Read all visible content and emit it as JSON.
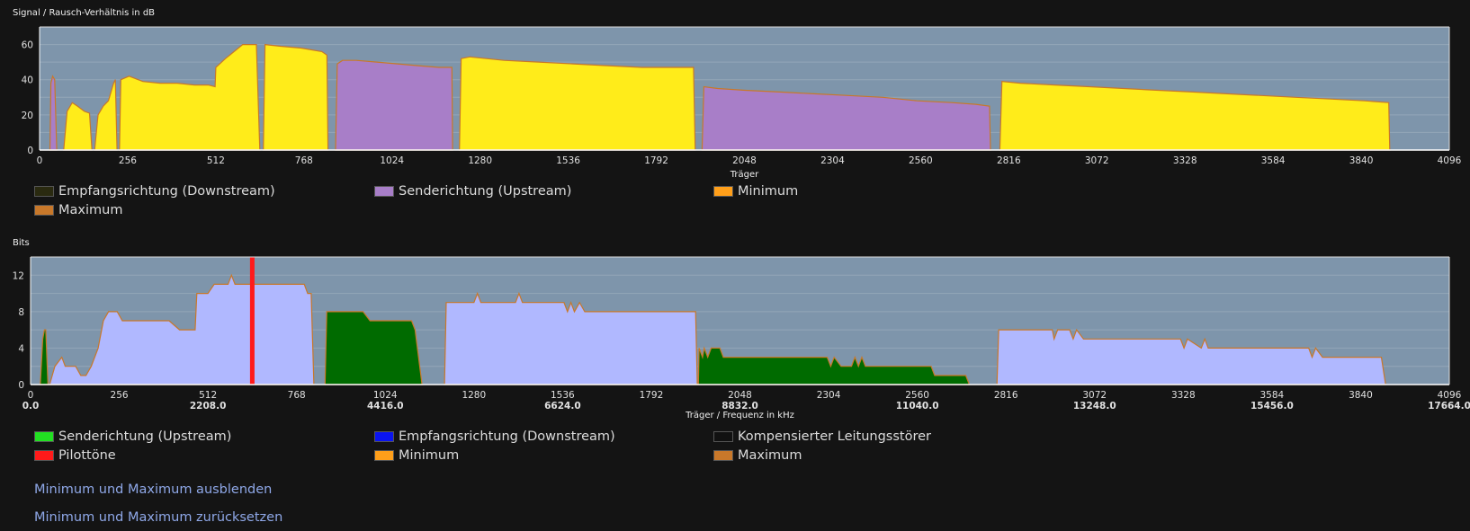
{
  "chart_data": [
    {
      "type": "area",
      "title": "Signal / Rausch-Verhältnis in dB",
      "xlabel": "Träger",
      "ylabel": "",
      "xlim": [
        0,
        4096
      ],
      "ylim": [
        0,
        70
      ],
      "x_ticks": [
        0,
        256,
        512,
        768,
        1024,
        1280,
        1536,
        1792,
        2048,
        2304,
        2560,
        2816,
        3072,
        3328,
        3584,
        3840,
        4096
      ],
      "y_ticks": [
        0,
        20,
        40,
        60
      ],
      "grid": true,
      "legend_position": "bottom",
      "legend": [
        {
          "label": "Empfangsrichtung (Downstream)",
          "color": "#2a2a10"
        },
        {
          "label": "Senderichtung (Upstream)",
          "color": "#a87ec8"
        },
        {
          "label": "Minimum",
          "color": "#ff9f1a"
        },
        {
          "label": "Maximum",
          "color": "#c8782a"
        }
      ],
      "series": [
        {
          "role": "down",
          "color": "#ffec1a",
          "segments": [
            [
              [
                70,
                0
              ],
              [
                80,
                22
              ],
              [
                95,
                27
              ],
              [
                110,
                25
              ],
              [
                130,
                22
              ],
              [
                145,
                21
              ],
              [
                152,
                0
              ]
            ],
            [
              [
                160,
                0
              ],
              [
                170,
                20
              ],
              [
                185,
                25
              ],
              [
                200,
                28
              ],
              [
                215,
                38
              ],
              [
                220,
                40
              ],
              [
                225,
                0
              ]
            ],
            [
              [
                232,
                0
              ],
              [
                236,
                40
              ],
              [
                260,
                42
              ],
              [
                300,
                39
              ],
              [
                350,
                38
              ],
              [
                400,
                38
              ],
              [
                450,
                37
              ],
              [
                490,
                37
              ],
              [
                510,
                36
              ],
              [
                512,
                47
              ],
              [
                540,
                52
              ],
              [
                565,
                56
              ],
              [
                590,
                60
              ],
              [
                630,
                60
              ],
              [
                640,
                0
              ]
            ],
            [
              [
                650,
                0
              ],
              [
                655,
                60
              ],
              [
                700,
                59
              ],
              [
                760,
                58
              ],
              [
                820,
                56
              ],
              [
                835,
                54
              ],
              [
                838,
                0
              ]
            ],
            [
              [
                1220,
                0
              ],
              [
                1225,
                52
              ],
              [
                1250,
                53
              ],
              [
                1350,
                51
              ],
              [
                1450,
                50
              ],
              [
                1550,
                49
              ],
              [
                1650,
                48
              ],
              [
                1750,
                47
              ],
              [
                1900,
                47
              ],
              [
                1905,
                0
              ]
            ],
            [
              [
                2790,
                0
              ],
              [
                2796,
                39
              ],
              [
                2850,
                38
              ],
              [
                2950,
                37
              ],
              [
                3050,
                36
              ],
              [
                3150,
                35
              ],
              [
                3250,
                34
              ],
              [
                3350,
                33
              ],
              [
                3450,
                32
              ],
              [
                3550,
                31
              ],
              [
                3650,
                30
              ],
              [
                3750,
                29
              ],
              [
                3850,
                28
              ],
              [
                3920,
                27
              ],
              [
                3923,
                0
              ]
            ]
          ]
        },
        {
          "role": "up",
          "color": "#a87ec8",
          "segments": [
            [
              [
                30,
                0
              ],
              [
                33,
                38
              ],
              [
                38,
                42
              ],
              [
                44,
                40
              ],
              [
                50,
                0
              ]
            ],
            [
              [
                860,
                0
              ],
              [
                865,
                49
              ],
              [
                880,
                51
              ],
              [
                920,
                51
              ],
              [
                980,
                50
              ],
              [
                1040,
                49
              ],
              [
                1100,
                48
              ],
              [
                1160,
                47
              ],
              [
                1198,
                47
              ],
              [
                1200,
                0
              ]
            ],
            [
              [
                1925,
                0
              ],
              [
                1930,
                36
              ],
              [
                1970,
                35
              ],
              [
                2050,
                34
              ],
              [
                2150,
                33
              ],
              [
                2250,
                32
              ],
              [
                2350,
                31
              ],
              [
                2450,
                30
              ],
              [
                2550,
                28
              ],
              [
                2650,
                27
              ],
              [
                2720,
                26
              ],
              [
                2760,
                25
              ],
              [
                2763,
                0
              ]
            ]
          ]
        }
      ]
    },
    {
      "type": "area",
      "title": "Bits",
      "xlabel": "Träger / Frequenz in kHz",
      "ylabel": "",
      "xlim": [
        0,
        4096
      ],
      "ylim": [
        0,
        14
      ],
      "x_ticks": [
        0,
        256,
        512,
        768,
        1024,
        1280,
        1536,
        1792,
        2048,
        2304,
        2560,
        2816,
        3072,
        3328,
        3584,
        3840,
        4096
      ],
      "x_ticks_secondary": [
        "0.0",
        "2208.0",
        "4416.0",
        "6624.0",
        "8832.0",
        "11040.0",
        "13248.0",
        "15456.0",
        "17664.0"
      ],
      "y_ticks": [
        0,
        4,
        8,
        12
      ],
      "grid": true,
      "legend_position": "bottom",
      "pilot_tone": 640,
      "legend": [
        {
          "label": "Senderichtung (Upstream)",
          "color": "#22e022"
        },
        {
          "label": "Empfangsrichtung (Downstream)",
          "color": "#0a14f0"
        },
        {
          "label": "Kompensierter Leitungsstörer",
          "color": "#111111"
        },
        {
          "label": "Pilottöne",
          "color": "#ff1a1a"
        },
        {
          "label": "Minimum",
          "color": "#ff9f1a"
        },
        {
          "label": "Maximum",
          "color": "#c8782a"
        }
      ],
      "series": [
        {
          "role": "down",
          "color": "#b0b8ff",
          "segments": [
            [
              [
                55,
                0
              ],
              [
                70,
                2
              ],
              [
                90,
                3
              ],
              [
                100,
                2
              ],
              [
                130,
                2
              ],
              [
                145,
                1
              ],
              [
                160,
                1
              ],
              [
                175,
                2
              ],
              [
                195,
                4
              ],
              [
                210,
                7
              ],
              [
                225,
                8
              ],
              [
                250,
                8
              ],
              [
                265,
                7
              ],
              [
                300,
                7
              ],
              [
                350,
                7
              ],
              [
                400,
                7
              ],
              [
                430,
                6
              ],
              [
                475,
                6
              ],
              [
                480,
                10
              ],
              [
                512,
                10
              ],
              [
                530,
                11
              ],
              [
                570,
                11
              ],
              [
                580,
                12
              ],
              [
                590,
                11
              ],
              [
                640,
                11
              ],
              [
                700,
                11
              ],
              [
                750,
                11
              ],
              [
                790,
                11
              ],
              [
                800,
                10
              ],
              [
                810,
                10
              ],
              [
                818,
                0
              ]
            ],
            [
              [
                1195,
                0
              ],
              [
                1200,
                9
              ],
              [
                1280,
                9
              ],
              [
                1290,
                10
              ],
              [
                1300,
                9
              ],
              [
                1400,
                9
              ],
              [
                1410,
                10
              ],
              [
                1420,
                9
              ],
              [
                1540,
                9
              ],
              [
                1550,
                8
              ],
              [
                1560,
                9
              ],
              [
                1570,
                8
              ],
              [
                1585,
                9
              ],
              [
                1600,
                8
              ],
              [
                1700,
                8
              ],
              [
                1800,
                8
              ],
              [
                1920,
                8
              ],
              [
                1925,
                0
              ]
            ],
            [
              [
                2790,
                0
              ],
              [
                2795,
                6
              ],
              [
                2900,
                6
              ],
              [
                2950,
                6
              ],
              [
                2955,
                5
              ],
              [
                2965,
                6
              ],
              [
                3000,
                6
              ],
              [
                3010,
                5
              ],
              [
                3020,
                6
              ],
              [
                3040,
                5
              ],
              [
                3200,
                5
              ],
              [
                3320,
                5
              ],
              [
                3330,
                4
              ],
              [
                3340,
                5
              ],
              [
                3380,
                4
              ],
              [
                3390,
                5
              ],
              [
                3400,
                4
              ],
              [
                3600,
                4
              ],
              [
                3690,
                4
              ],
              [
                3700,
                3
              ],
              [
                3710,
                4
              ],
              [
                3730,
                3
              ],
              [
                3900,
                3
              ],
              [
                3912,
                0
              ]
            ]
          ]
        },
        {
          "role": "up",
          "color": "#006b00",
          "segments": [
            [
              [
                28,
                0
              ],
              [
                35,
                5
              ],
              [
                40,
                6
              ],
              [
                44,
                6
              ],
              [
                50,
                0
              ]
            ],
            [
              [
                850,
                0
              ],
              [
                855,
                8
              ],
              [
                960,
                8
              ],
              [
                980,
                7
              ],
              [
                1080,
                7
              ],
              [
                1100,
                7
              ],
              [
                1110,
                6
              ],
              [
                1130,
                0
              ]
            ],
            [
              [
                1928,
                0
              ],
              [
                1930,
                4
              ],
              [
                1940,
                3
              ],
              [
                1945,
                4
              ],
              [
                1955,
                3
              ],
              [
                1965,
                4
              ],
              [
                1990,
                4
              ],
              [
                2000,
                3
              ],
              [
                2050,
                3
              ],
              [
                2100,
                3
              ],
              [
                2200,
                3
              ],
              [
                2300,
                3
              ],
              [
                2310,
                2
              ],
              [
                2320,
                3
              ],
              [
                2340,
                2
              ],
              [
                2370,
                2
              ],
              [
                2380,
                3
              ],
              [
                2390,
                2
              ],
              [
                2400,
                3
              ],
              [
                2410,
                2
              ],
              [
                2600,
                2
              ],
              [
                2610,
                1
              ],
              [
                2700,
                1
              ],
              [
                2710,
                0
              ]
            ]
          ]
        }
      ]
    }
  ],
  "links": {
    "hide_minmax": "Minimum und Maximum ausblenden",
    "reset_minmax": "Minimum und Maximum zurücksetzen"
  }
}
